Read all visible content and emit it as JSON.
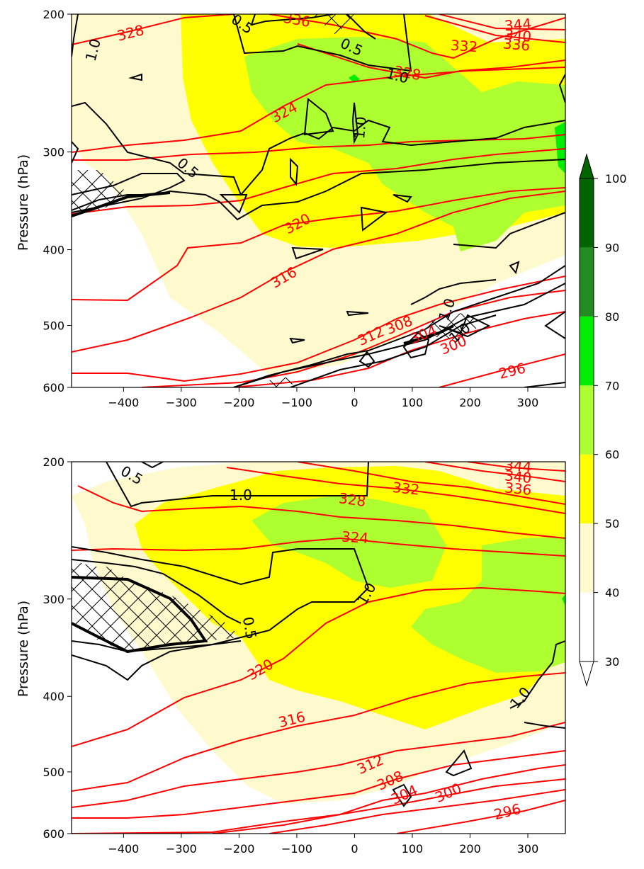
{
  "colors": {
    "bin_40_50": "#fffacd",
    "bin_50_60": "#ffff00",
    "bin_60_70": "#adff2f",
    "bin_70_80": "#00ee00",
    "bin_80_90": "#228b22",
    "bin_90_100": "#006400",
    "isentrope": "#ff0000",
    "pv_contour": "#000000"
  },
  "chart_data": [
    {
      "type": "contour",
      "panel": "top",
      "xlim": [
        -490,
        365
      ],
      "ylim": [
        600,
        200
      ],
      "y_scale": "log",
      "grid": false,
      "xticks": [
        -400,
        -300,
        -200,
        -100,
        0,
        100,
        200,
        300
      ],
      "yticks": [
        200,
        300,
        400,
        500,
        600
      ],
      "ylabel": "Pressure (hPa)",
      "xlabel": "",
      "title": "",
      "isentrope_labels": [
        "328",
        "336",
        "344",
        "340",
        "336",
        "332",
        "328",
        "324",
        "320",
        "316",
        "312",
        "308",
        "304",
        "300",
        "296"
      ],
      "pv_labels": [
        "1.0",
        "0.5",
        "0.5",
        "1.0",
        "1.0",
        "0.5",
        "1.0",
        "1.0"
      ]
    },
    {
      "type": "contour",
      "panel": "bottom",
      "xlim": [
        -490,
        365
      ],
      "ylim": [
        600,
        200
      ],
      "y_scale": "log",
      "grid": false,
      "xticks": [
        -400,
        -300,
        -200,
        -100,
        0,
        100,
        200,
        300
      ],
      "yticks": [
        200,
        300,
        400,
        500,
        600
      ],
      "ylabel": "Pressure (hPa)",
      "xlabel": "",
      "title": "",
      "isentrope_labels": [
        "344",
        "340",
        "336",
        "332",
        "328",
        "324",
        "320",
        "316",
        "312",
        "308",
        "304",
        "300",
        "296"
      ],
      "pv_labels": [
        "0.5",
        "1.0",
        "1.0",
        "0.5",
        "1.0"
      ]
    }
  ],
  "colorbar": {
    "levels": [
      30,
      40,
      50,
      60,
      70,
      80,
      90,
      100
    ],
    "extend": "both",
    "orientation": "vertical"
  }
}
